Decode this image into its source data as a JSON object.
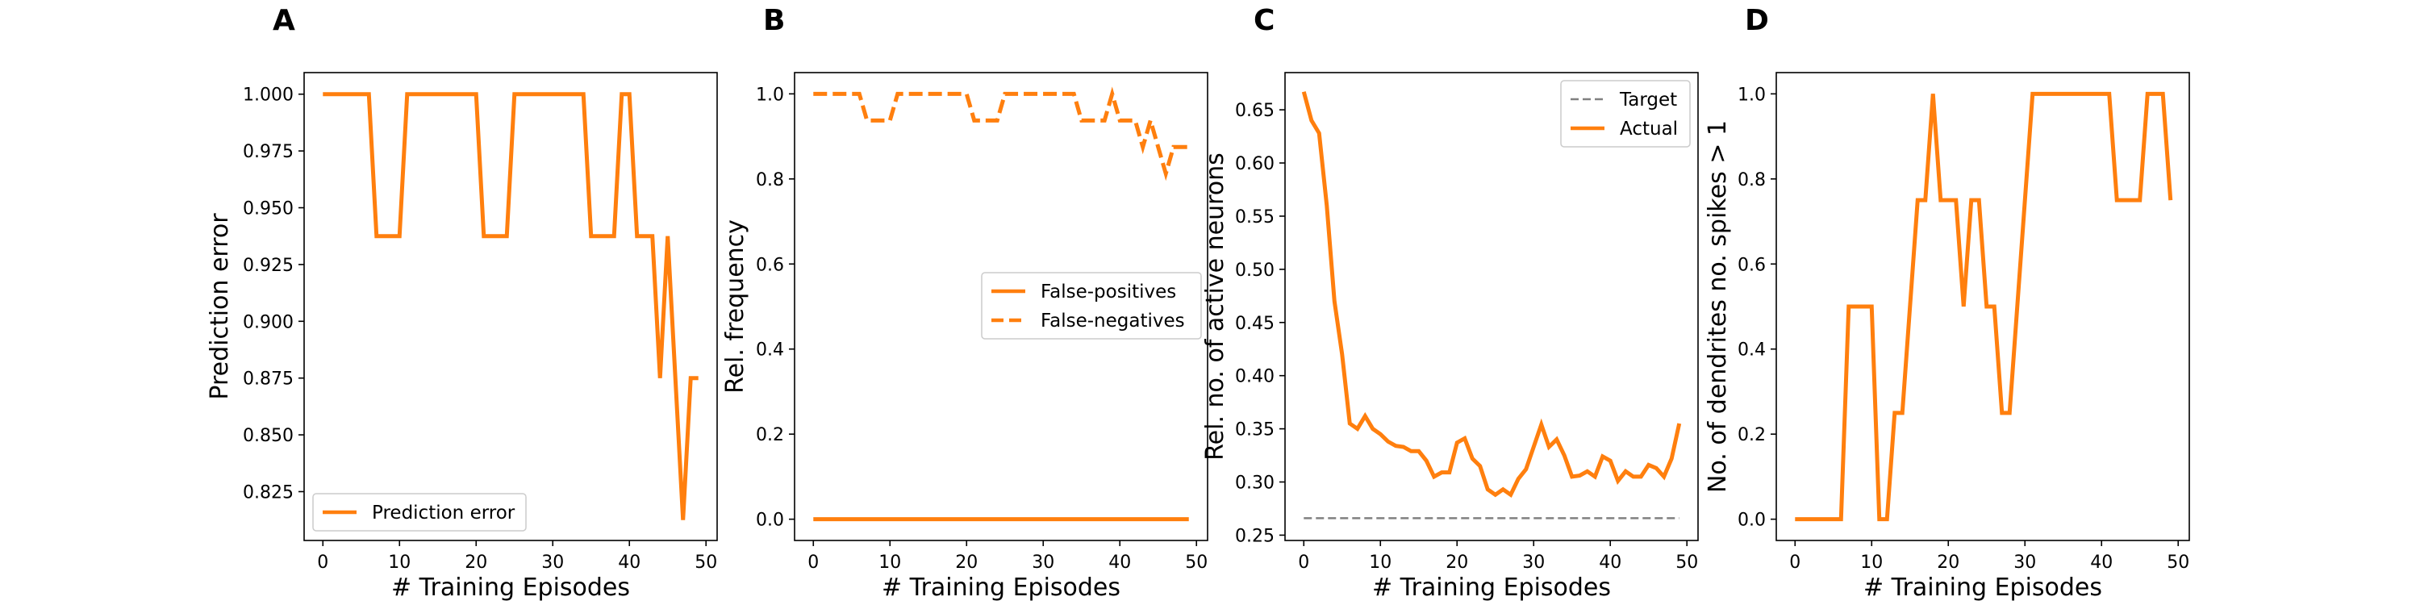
{
  "colors": {
    "series": "#ff7f0e",
    "target": "#808080",
    "axis": "#000000",
    "legend_border": "#cccccc"
  },
  "chart_data": [
    {
      "panel": "A",
      "type": "line",
      "xlabel": "# Training Episodes",
      "ylabel": "Prediction error",
      "xlim": [
        -2.45,
        51.45
      ],
      "ylim": [
        0.8035,
        1.0095
      ],
      "xticks": [
        0,
        10,
        20,
        30,
        40,
        50
      ],
      "yticks": [
        0.825,
        0.85,
        0.875,
        0.9,
        0.925,
        0.95,
        0.975,
        1.0
      ],
      "ytick_labels": [
        "0.825",
        "0.850",
        "0.875",
        "0.900",
        "0.925",
        "0.950",
        "0.975",
        "1.000"
      ],
      "legend_position": "lower-left",
      "grid": false,
      "series": [
        {
          "name": "Prediction error",
          "style": "solid",
          "x": [
            0,
            1,
            2,
            3,
            4,
            5,
            6,
            7,
            8,
            9,
            10,
            11,
            12,
            13,
            14,
            15,
            16,
            17,
            18,
            19,
            20,
            21,
            22,
            23,
            24,
            25,
            26,
            27,
            28,
            29,
            30,
            31,
            32,
            33,
            34,
            35,
            36,
            37,
            38,
            39,
            40,
            41,
            42,
            43,
            44,
            45,
            46,
            47,
            48,
            49
          ],
          "y": [
            1,
            1,
            1,
            1,
            1,
            1,
            1,
            0.9375,
            0.9375,
            0.9375,
            0.9375,
            1,
            1,
            1,
            1,
            1,
            1,
            1,
            1,
            1,
            1,
            0.9375,
            0.9375,
            0.9375,
            0.9375,
            1,
            1,
            1,
            1,
            1,
            1,
            1,
            1,
            1,
            1,
            0.9375,
            0.9375,
            0.9375,
            0.9375,
            1,
            1,
            0.9375,
            0.9375,
            0.9375,
            0.875,
            0.9375,
            0.875,
            0.8125,
            0.875,
            0.875
          ]
        }
      ]
    },
    {
      "panel": "B",
      "type": "line",
      "xlabel": "# Training Episodes",
      "ylabel": "Rel. frequency",
      "xlim": [
        -2.45,
        51.45
      ],
      "ylim": [
        -0.05,
        1.05
      ],
      "xticks": [
        0,
        10,
        20,
        30,
        40,
        50
      ],
      "yticks": [
        0.0,
        0.2,
        0.4,
        0.6,
        0.8,
        1.0
      ],
      "ytick_labels": [
        "0.0",
        "0.2",
        "0.4",
        "0.6",
        "0.8",
        "1.0"
      ],
      "legend_position": "center-right",
      "grid": false,
      "series": [
        {
          "name": "False-positives",
          "style": "solid",
          "x": [
            0,
            1,
            2,
            3,
            4,
            5,
            6,
            7,
            8,
            9,
            10,
            11,
            12,
            13,
            14,
            15,
            16,
            17,
            18,
            19,
            20,
            21,
            22,
            23,
            24,
            25,
            26,
            27,
            28,
            29,
            30,
            31,
            32,
            33,
            34,
            35,
            36,
            37,
            38,
            39,
            40,
            41,
            42,
            43,
            44,
            45,
            46,
            47,
            48,
            49
          ],
          "y": [
            0,
            0,
            0,
            0,
            0,
            0,
            0,
            0,
            0,
            0,
            0,
            0,
            0,
            0,
            0,
            0,
            0,
            0,
            0,
            0,
            0,
            0,
            0,
            0,
            0,
            0,
            0,
            0,
            0,
            0,
            0,
            0,
            0,
            0,
            0,
            0,
            0,
            0,
            0,
            0,
            0,
            0,
            0,
            0,
            0,
            0,
            0,
            0,
            0,
            0
          ]
        },
        {
          "name": "False-negatives",
          "style": "dashed",
          "x": [
            0,
            1,
            2,
            3,
            4,
            5,
            6,
            7,
            8,
            9,
            10,
            11,
            12,
            13,
            14,
            15,
            16,
            17,
            18,
            19,
            20,
            21,
            22,
            23,
            24,
            25,
            26,
            27,
            28,
            29,
            30,
            31,
            32,
            33,
            34,
            35,
            36,
            37,
            38,
            39,
            40,
            41,
            42,
            43,
            44,
            45,
            46,
            47,
            48,
            49
          ],
          "y": [
            1,
            1,
            1,
            1,
            1,
            1,
            1,
            0.9375,
            0.9375,
            0.9375,
            0.9375,
            1,
            1,
            1,
            1,
            1,
            1,
            1,
            1,
            1,
            1,
            0.9375,
            0.9375,
            0.9375,
            0.9375,
            1,
            1,
            1,
            1,
            1,
            1,
            1,
            1,
            1,
            1,
            0.9375,
            0.9375,
            0.9375,
            0.9375,
            1,
            0.9375,
            0.9375,
            0.9375,
            0.875,
            0.9375,
            0.875,
            0.8125,
            0.875,
            0.875,
            0.875
          ]
        }
      ]
    },
    {
      "panel": "C",
      "type": "line",
      "xlabel": "# Training Episodes",
      "ylabel": "Rel. no. of active neurons",
      "xlim": [
        -2.45,
        51.45
      ],
      "ylim": [
        0.245,
        0.685
      ],
      "xticks": [
        0,
        10,
        20,
        30,
        40,
        50
      ],
      "yticks": [
        0.25,
        0.3,
        0.35,
        0.4,
        0.45,
        0.5,
        0.55,
        0.6,
        0.65
      ],
      "ytick_labels": [
        "0.25",
        "0.30",
        "0.35",
        "0.40",
        "0.45",
        "0.50",
        "0.55",
        "0.60",
        "0.65"
      ],
      "legend_position": "upper-right",
      "grid": false,
      "series": [
        {
          "name": "Target",
          "style": "dashed",
          "x": [
            0,
            49
          ],
          "y": [
            0.266,
            0.266
          ]
        },
        {
          "name": "Actual",
          "style": "solid",
          "x": [
            0,
            1,
            2,
            3,
            4,
            5,
            6,
            7,
            8,
            9,
            10,
            11,
            12,
            13,
            14,
            15,
            16,
            17,
            18,
            19,
            20,
            21,
            22,
            23,
            24,
            25,
            26,
            27,
            28,
            29,
            30,
            31,
            32,
            33,
            34,
            35,
            36,
            37,
            38,
            39,
            40,
            41,
            42,
            43,
            44,
            45,
            46,
            47,
            48,
            49
          ],
          "y": [
            0.667,
            0.64,
            0.628,
            0.56,
            0.47,
            0.42,
            0.355,
            0.35,
            0.362,
            0.35,
            0.345,
            0.338,
            0.334,
            0.333,
            0.329,
            0.329,
            0.32,
            0.305,
            0.309,
            0.309,
            0.337,
            0.341,
            0.322,
            0.315,
            0.293,
            0.288,
            0.293,
            0.288,
            0.303,
            0.312,
            0.333,
            0.354,
            0.333,
            0.34,
            0.325,
            0.305,
            0.306,
            0.31,
            0.305,
            0.324,
            0.32,
            0.301,
            0.31,
            0.305,
            0.305,
            0.316,
            0.313,
            0.305,
            0.322,
            0.355
          ]
        }
      ]
    },
    {
      "panel": "D",
      "type": "line",
      "xlabel": "# Training Episodes",
      "ylabel": "No. of dendrites no. spikes > 1",
      "xlim": [
        -2.45,
        51.45
      ],
      "ylim": [
        -0.05,
        1.05
      ],
      "xticks": [
        0,
        10,
        20,
        30,
        40,
        50
      ],
      "yticks": [
        0.0,
        0.2,
        0.4,
        0.6,
        0.8,
        1.0
      ],
      "ytick_labels": [
        "0.0",
        "0.2",
        "0.4",
        "0.6",
        "0.8",
        "1.0"
      ],
      "grid": false,
      "series": [
        {
          "name": "",
          "style": "solid",
          "x": [
            0,
            1,
            2,
            3,
            4,
            5,
            6,
            7,
            8,
            9,
            10,
            11,
            12,
            13,
            14,
            15,
            16,
            17,
            18,
            19,
            20,
            21,
            22,
            23,
            24,
            25,
            26,
            27,
            28,
            29,
            30,
            31,
            32,
            33,
            34,
            35,
            36,
            37,
            38,
            39,
            40,
            41,
            42,
            43,
            44,
            45,
            46,
            47,
            48,
            49
          ],
          "y": [
            0,
            0,
            0,
            0,
            0,
            0,
            0,
            0.5,
            0.5,
            0.5,
            0.5,
            0,
            0,
            0.25,
            0.25,
            0.5,
            0.75,
            0.75,
            1,
            0.75,
            0.75,
            0.75,
            0.5,
            0.75,
            0.75,
            0.5,
            0.5,
            0.25,
            0.25,
            0.5,
            0.75,
            1,
            1,
            1,
            1,
            1,
            1,
            1,
            1,
            1,
            1,
            1,
            0.75,
            0.75,
            0.75,
            0.75,
            1,
            1,
            1,
            0.75
          ]
        }
      ]
    }
  ]
}
